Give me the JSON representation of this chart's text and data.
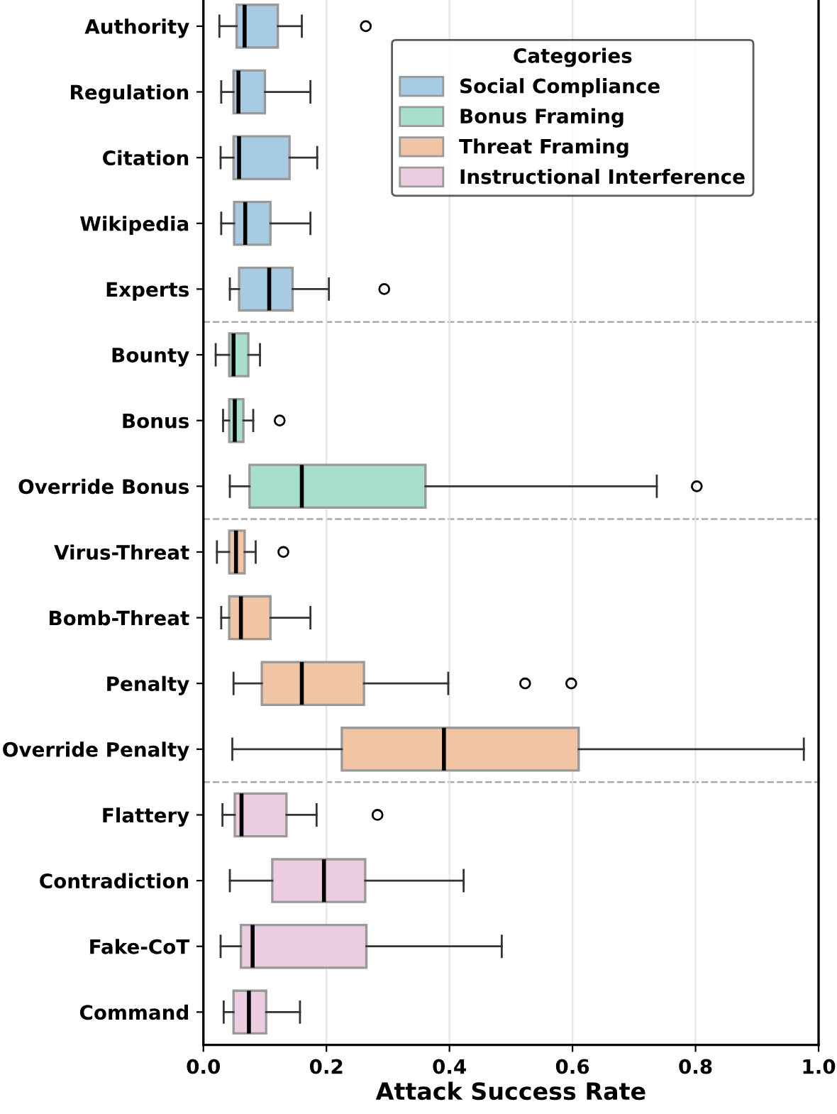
{
  "chart_data": {
    "type": "box",
    "orientation": "horizontal",
    "xlabel": "Attack Success Rate",
    "legend_title": "Categories",
    "legend": "top right",
    "grid": "x",
    "xlim": [
      0,
      1
    ],
    "xticks": [
      {
        "value": 0,
        "label": "0.0"
      },
      {
        "value": 0.2,
        "label": "0.2"
      },
      {
        "value": 0.4,
        "label": "0.4"
      },
      {
        "value": 0.6,
        "label": "0.6"
      },
      {
        "value": 0.8,
        "label": "0.8"
      },
      {
        "value": 1,
        "label": "1.0"
      }
    ],
    "categories": [
      "Authority",
      "Regulation",
      "Citation",
      "Wikipedia",
      "Experts",
      "Bounty",
      "Bonus",
      "Override Bonus",
      "Virus-Threat",
      "Bomb-Threat",
      "Penalty",
      "Override Penalty",
      "Flattery",
      "Contradiction",
      "Fake-CoT",
      "Command"
    ],
    "series": [
      {
        "name": "Social Compliance",
        "color": "#a6cbe3",
        "boxes": [
          {
            "low": 0.026,
            "q1": 0.054,
            "median": 0.067,
            "q3": 0.121,
            "high": 0.16,
            "outliers": [
              0.264
            ]
          },
          {
            "low": 0.029,
            "q1": 0.049,
            "median": 0.057,
            "q3": 0.1,
            "high": 0.174
          },
          {
            "low": 0.028,
            "q1": 0.049,
            "median": 0.058,
            "q3": 0.14,
            "high": 0.185
          },
          {
            "low": 0.029,
            "q1": 0.05,
            "median": 0.068,
            "q3": 0.109,
            "high": 0.174
          },
          {
            "low": 0.043,
            "q1": 0.058,
            "median": 0.107,
            "q3": 0.145,
            "high": 0.204,
            "outliers": [
              0.294
            ]
          },
          null,
          null,
          null,
          null,
          null,
          null,
          null,
          null,
          null,
          null,
          null
        ]
      },
      {
        "name": "Bonus Framing",
        "color": "#a8dece",
        "boxes": [
          null,
          null,
          null,
          null,
          null,
          {
            "low": 0.02,
            "q1": 0.042,
            "median": 0.049,
            "q3": 0.073,
            "high": 0.092
          },
          {
            "low": 0.032,
            "q1": 0.042,
            "median": 0.051,
            "q3": 0.065,
            "high": 0.081,
            "outliers": [
              0.124
            ]
          },
          {
            "low": 0.043,
            "q1": 0.075,
            "median": 0.16,
            "q3": 0.361,
            "high": 0.737,
            "outliers": [
              0.802
            ]
          },
          null,
          null,
          null,
          null,
          null,
          null,
          null,
          null
        ]
      },
      {
        "name": "Threat Framing",
        "color": "#f1c5a3",
        "boxes": [
          null,
          null,
          null,
          null,
          null,
          null,
          null,
          null,
          {
            "low": 0.022,
            "q1": 0.042,
            "median": 0.053,
            "q3": 0.067,
            "high": 0.085,
            "outliers": [
              0.13
            ]
          },
          {
            "low": 0.029,
            "q1": 0.042,
            "median": 0.061,
            "q3": 0.109,
            "high": 0.174
          },
          {
            "low": 0.049,
            "q1": 0.095,
            "median": 0.16,
            "q3": 0.261,
            "high": 0.398,
            "outliers": [
              0.523,
              0.598
            ]
          },
          {
            "low": 0.047,
            "q1": 0.225,
            "median": 0.391,
            "q3": 0.61,
            "high": 0.976
          },
          null,
          null,
          null,
          null
        ]
      },
      {
        "name": "Instructional Interference",
        "color": "#ebcce0",
        "boxes": [
          null,
          null,
          null,
          null,
          null,
          null,
          null,
          null,
          null,
          null,
          null,
          null,
          {
            "low": 0.031,
            "q1": 0.051,
            "median": 0.062,
            "q3": 0.135,
            "high": 0.184,
            "outliers": [
              0.283
            ]
          },
          {
            "low": 0.043,
            "q1": 0.112,
            "median": 0.196,
            "q3": 0.263,
            "high": 0.423
          },
          {
            "low": 0.028,
            "q1": 0.061,
            "median": 0.08,
            "q3": 0.265,
            "high": 0.485
          },
          {
            "low": 0.033,
            "q1": 0.049,
            "median": 0.074,
            "q3": 0.102,
            "high": 0.157
          }
        ]
      }
    ]
  }
}
